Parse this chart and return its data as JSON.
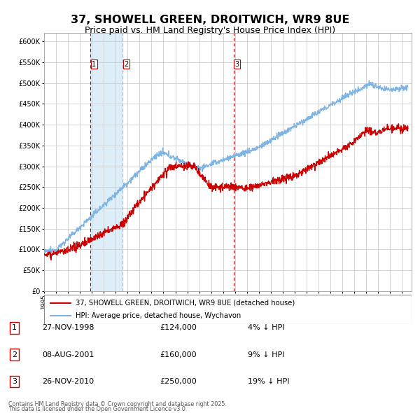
{
  "title": "37, SHOWELL GREEN, DROITWICH, WR9 8UE",
  "subtitle": "Price paid vs. HM Land Registry's House Price Index (HPI)",
  "legend_line1": "37, SHOWELL GREEN, DROITWICH, WR9 8UE (detached house)",
  "legend_line2": "HPI: Average price, detached house, Wychavon",
  "footer1": "Contains HM Land Registry data © Crown copyright and database right 2025.",
  "footer2": "This data is licensed under the Open Government Licence v3.0.",
  "transactions": [
    {
      "num": 1,
      "date": "27-NOV-1998",
      "price": 124000,
      "pct": "4%",
      "dir": "↓",
      "year": 1998.9
    },
    {
      "num": 2,
      "date": "08-AUG-2001",
      "price": 160000,
      "pct": "9%",
      "dir": "↓",
      "year": 2001.6
    },
    {
      "num": 3,
      "date": "26-NOV-2010",
      "price": 250000,
      "pct": "19%",
      "dir": "↓",
      "year": 2010.9
    }
  ],
  "hpi_color": "#7EB4E3",
  "price_color": "#CC0000",
  "shaded_color": "#DDEEF8",
  "vline_color_solid": "#CC0000",
  "vline_color_dash": "#99BBDD",
  "background_color": "#FFFFFF",
  "grid_color": "#CCCCCC",
  "ylim": [
    0,
    620000
  ],
  "yticks": [
    0,
    50000,
    100000,
    150000,
    200000,
    250000,
    300000,
    350000,
    400000,
    450000,
    500000,
    550000,
    600000
  ],
  "xlim_start": 1995.0,
  "xlim_end": 2025.8
}
